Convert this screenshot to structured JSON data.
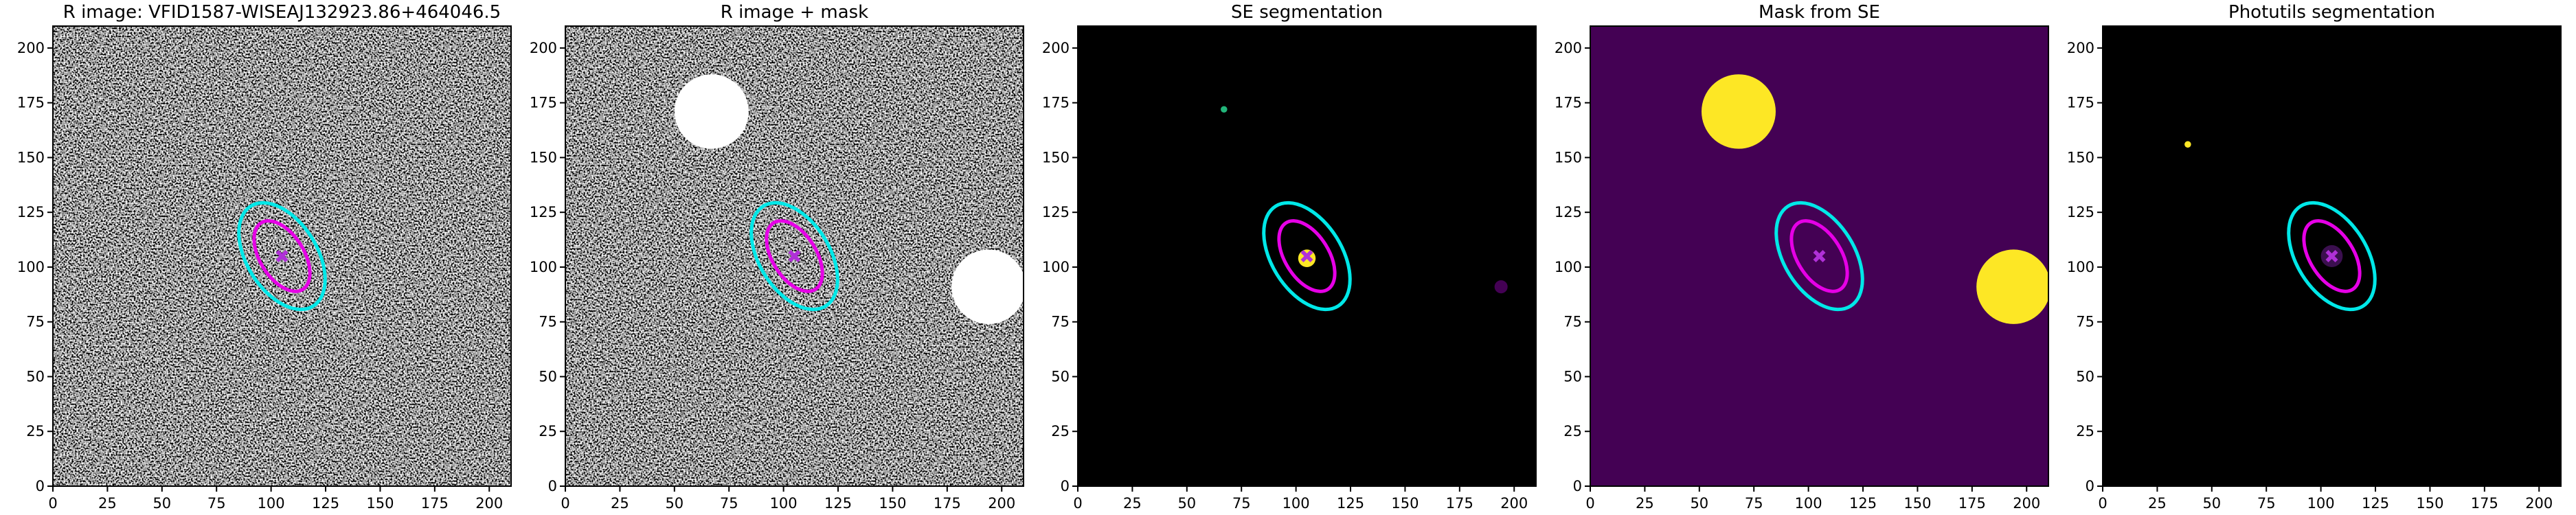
{
  "chart_data": [
    {
      "type": "image",
      "title": "R image: VFID1587-WISEAJ132923.86+464046.5",
      "background": "noise",
      "xlim": [
        0,
        210
      ],
      "ylim": [
        0,
        210
      ],
      "xticks": [
        0,
        25,
        50,
        75,
        100,
        125,
        150,
        175,
        200
      ],
      "yticks": [
        0,
        25,
        50,
        75,
        100,
        125,
        150,
        175,
        200
      ],
      "ellipses": [
        {
          "x": 105,
          "y": 105,
          "a": 27,
          "b": 16,
          "angle": 122,
          "color": "#00e8e8"
        },
        {
          "x": 105,
          "y": 105,
          "a": 18,
          "b": 10,
          "angle": 122,
          "color": "#e600e6"
        }
      ],
      "center": {
        "x": 105,
        "y": 105,
        "color": "#b030d8"
      }
    },
    {
      "type": "image",
      "title": "R image + mask",
      "background": "noise",
      "xlim": [
        0,
        210
      ],
      "ylim": [
        0,
        210
      ],
      "xticks": [
        0,
        25,
        50,
        75,
        100,
        125,
        150,
        175,
        200
      ],
      "yticks": [
        0,
        25,
        50,
        75,
        100,
        125,
        150,
        175,
        200
      ],
      "masks": [
        {
          "x": 67,
          "y": 171,
          "r": 17,
          "color": "#ffffff"
        },
        {
          "x": 194,
          "y": 91,
          "r": 17,
          "color": "#ffffff"
        }
      ],
      "ellipses": [
        {
          "x": 105,
          "y": 105,
          "a": 27,
          "b": 16,
          "angle": 122,
          "color": "#00e8e8"
        },
        {
          "x": 105,
          "y": 105,
          "a": 18,
          "b": 10,
          "angle": 122,
          "color": "#e600e6"
        }
      ],
      "center": {
        "x": 105,
        "y": 105,
        "color": "#b030d8"
      }
    },
    {
      "type": "image",
      "title": "SE segmentation",
      "background": "#000000",
      "xlim": [
        0,
        210
      ],
      "ylim": [
        0,
        210
      ],
      "xticks": [
        0,
        25,
        50,
        75,
        100,
        125,
        150,
        175,
        200
      ],
      "yticks": [
        0,
        25,
        50,
        75,
        100,
        125,
        150,
        175,
        200
      ],
      "masks": [
        {
          "x": 67,
          "y": 172,
          "r": 1.5,
          "color": "#22b57a"
        },
        {
          "x": 105,
          "y": 104,
          "r": 4,
          "color": "#fde725"
        },
        {
          "x": 194,
          "y": 91,
          "r": 3,
          "color": "#440154"
        }
      ],
      "ellipses": [
        {
          "x": 105,
          "y": 105,
          "a": 27,
          "b": 16,
          "angle": 122,
          "color": "#00e8e8"
        },
        {
          "x": 105,
          "y": 105,
          "a": 18,
          "b": 10,
          "angle": 122,
          "color": "#e600e6"
        }
      ],
      "center": {
        "x": 105,
        "y": 105,
        "color": "#b030d8"
      }
    },
    {
      "type": "image",
      "title": "Mask from SE",
      "background": "#440154",
      "xlim": [
        0,
        210
      ],
      "ylim": [
        0,
        210
      ],
      "xticks": [
        0,
        25,
        50,
        75,
        100,
        125,
        150,
        175,
        200
      ],
      "yticks": [
        0,
        25,
        50,
        75,
        100,
        125,
        150,
        175,
        200
      ],
      "masks": [
        {
          "x": 68,
          "y": 171,
          "r": 17,
          "color": "#fde725"
        },
        {
          "x": 194,
          "y": 91,
          "r": 17,
          "color": "#fde725"
        }
      ],
      "ellipses": [
        {
          "x": 105,
          "y": 105,
          "a": 27,
          "b": 16,
          "angle": 122,
          "color": "#00e8e8"
        },
        {
          "x": 105,
          "y": 105,
          "a": 18,
          "b": 10,
          "angle": 122,
          "color": "#e600e6"
        }
      ],
      "center": {
        "x": 105,
        "y": 105,
        "color": "#b030d8"
      }
    },
    {
      "type": "image",
      "title": "Photutils segmentation",
      "background": "#000000",
      "xlim": [
        0,
        210
      ],
      "ylim": [
        0,
        210
      ],
      "xticks": [
        0,
        25,
        50,
        75,
        100,
        125,
        150,
        175,
        200
      ],
      "yticks": [
        0,
        25,
        50,
        75,
        100,
        125,
        150,
        175,
        200
      ],
      "masks": [
        {
          "x": 39,
          "y": 156,
          "r": 1.5,
          "color": "#fde725"
        },
        {
          "x": 105,
          "y": 105,
          "r": 5,
          "color": "#3b0f4f"
        }
      ],
      "ellipses": [
        {
          "x": 105,
          "y": 105,
          "a": 27,
          "b": 16,
          "angle": 122,
          "color": "#00e8e8"
        },
        {
          "x": 105,
          "y": 105,
          "a": 18,
          "b": 10,
          "angle": 122,
          "color": "#e600e6"
        }
      ],
      "center": {
        "x": 105,
        "y": 105,
        "color": "#b030d8"
      }
    }
  ]
}
